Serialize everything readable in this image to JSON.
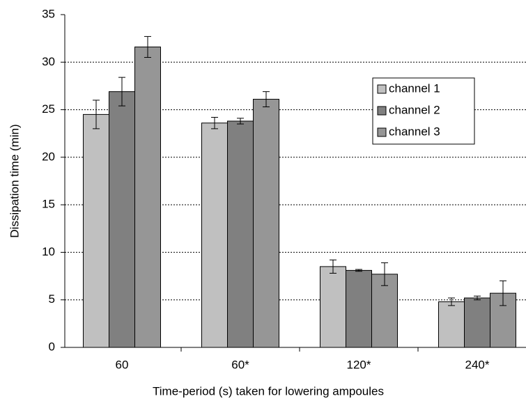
{
  "chart_data": {
    "type": "bar",
    "x_label": "Time-period (s) taken for lowering ampoules",
    "y_label": "Dissipation time (min)",
    "categories": [
      "60",
      "60*",
      "120*",
      "240*"
    ],
    "series": [
      {
        "name": "channel 1",
        "color": "#c0c0c0",
        "values": [
          24.5,
          23.6,
          8.5,
          4.8
        ],
        "errors": [
          1.5,
          0.6,
          0.7,
          0.4
        ]
      },
      {
        "name": "channel 2",
        "color": "#808080",
        "values": [
          26.9,
          23.8,
          8.1,
          5.2
        ],
        "errors": [
          1.5,
          0.3,
          0.1,
          0.2
        ]
      },
      {
        "name": "channel 3",
        "color": "#969696",
        "values": [
          31.6,
          26.1,
          7.7,
          5.7
        ],
        "errors": [
          1.1,
          0.8,
          1.2,
          1.3
        ]
      }
    ],
    "ylim": [
      0,
      35
    ],
    "yticks": [
      0,
      5,
      10,
      15,
      20,
      25,
      30,
      35
    ],
    "grid": true,
    "legend": "right"
  }
}
